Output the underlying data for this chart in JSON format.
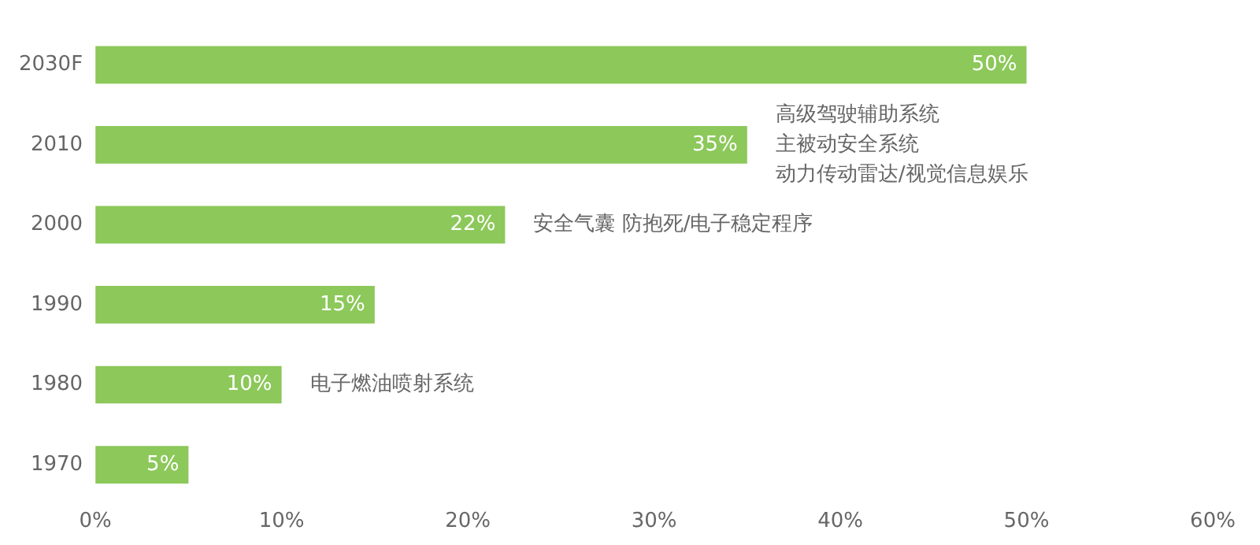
{
  "chart_data": {
    "type": "bar",
    "orientation": "horizontal",
    "categories": [
      "2030F",
      "2010",
      "2000",
      "1990",
      "1980",
      "1970"
    ],
    "values": [
      50,
      35,
      22,
      15,
      10,
      5
    ],
    "value_labels": [
      "50%",
      "35%",
      "22%",
      "15%",
      "10%",
      "5%"
    ],
    "color": "#8cc85a",
    "xlim": [
      0,
      60
    ],
    "xticks": [
      {
        "value": 0,
        "label": "0%"
      },
      {
        "value": 10,
        "label": "10%"
      },
      {
        "value": 20,
        "label": "20%"
      },
      {
        "value": 30,
        "label": "30%"
      },
      {
        "value": 40,
        "label": "40%"
      },
      {
        "value": 50,
        "label": "50%"
      },
      {
        "value": 60,
        "label": "60%"
      }
    ],
    "grid": false,
    "legend": false,
    "annotations": [
      {
        "text": "高级驾驶辅助系统",
        "x": 35,
        "y": "2010"
      },
      {
        "text": "主被动安全系统",
        "x": 35,
        "y": "2010"
      },
      {
        "text": "动力传动雷达/视觉信息娱乐",
        "x": 35,
        "y": "2010"
      },
      {
        "text": "安全气囊 防抱死/电子稳定程序",
        "x": 22,
        "y": "2000"
      },
      {
        "text": "电子燃油喷射系统",
        "x": 10,
        "y": "1980"
      }
    ]
  }
}
